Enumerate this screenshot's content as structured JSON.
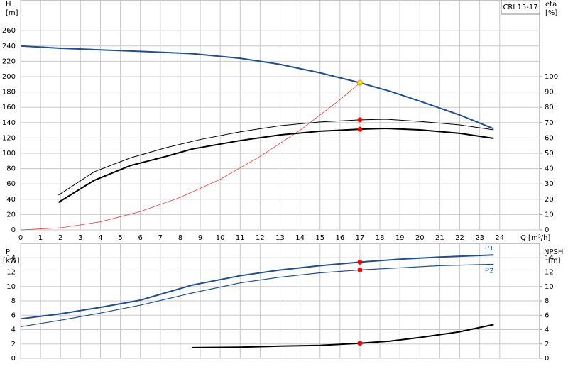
{
  "chart_data": [
    {
      "type": "line",
      "y_label": "H",
      "y_unit": "[m]",
      "y2_label": "eta",
      "y2_unit": "[%]",
      "x_label": "Q [m³/h]",
      "annotation": "CRI 15-17",
      "grid": true,
      "xlim": [
        0,
        26
      ],
      "xticks": [
        0,
        1,
        2,
        3,
        4,
        5,
        6,
        7,
        8,
        9,
        10,
        11,
        12,
        13,
        14,
        15,
        16,
        17,
        18,
        19,
        20,
        21,
        22,
        23,
        24
      ],
      "ylim": [
        0,
        300
      ],
      "yticks": [
        0,
        20,
        40,
        60,
        80,
        100,
        120,
        140,
        160,
        180,
        200,
        220,
        240,
        260
      ],
      "y2lim": [
        0,
        150
      ],
      "y2ticks": [
        0,
        10,
        20,
        30,
        40,
        50,
        60,
        70,
        80,
        90,
        100
      ],
      "series": [
        {
          "color": "#1f4e96",
          "width": 2,
          "axis": "y",
          "x": [
            0,
            2,
            4,
            6,
            8.6,
            11,
            13,
            15,
            17,
            18.5,
            20,
            22,
            23.7
          ],
          "values": [
            240,
            237,
            235,
            233,
            230,
            224,
            216,
            205,
            192,
            181,
            168,
            150,
            132
          ]
        },
        {
          "color": "#ff3333",
          "width": 0.8,
          "axis": "y",
          "x": [
            0,
            2,
            4,
            6,
            8,
            10,
            12,
            14,
            16,
            17
          ],
          "values": [
            0,
            2.7,
            10.6,
            24,
            42.5,
            66,
            96,
            130,
            170,
            192
          ]
        },
        {
          "color": "#000000",
          "width": 1,
          "axis": "y2",
          "x": [
            1.9,
            3.7,
            5.5,
            7.3,
            9,
            11,
            13,
            15,
            17,
            18.3,
            20,
            22,
            23.7
          ],
          "values": [
            22.7,
            38,
            47,
            53.7,
            59,
            64,
            68,
            70.4,
            71.8,
            72.2,
            70.8,
            68.5,
            65.3
          ]
        },
        {
          "color": "#000000",
          "width": 2,
          "axis": "y2",
          "x": [
            1.9,
            3.7,
            5.5,
            7.3,
            8.6,
            11,
            13,
            15,
            17,
            18.3,
            20,
            22,
            23.7
          ],
          "values": [
            18,
            32.4,
            42,
            48,
            52.8,
            58.3,
            62,
            64.4,
            65.7,
            66.2,
            65.3,
            63,
            59.7
          ]
        }
      ],
      "points": [
        {
          "x": 17,
          "value": 192,
          "axis": "y",
          "color": "#ffd700"
        },
        {
          "x": 17,
          "value": 71.8,
          "axis": "y2",
          "color": "#ff0000"
        },
        {
          "x": 17,
          "value": 65.7,
          "axis": "y2",
          "color": "#ff0000"
        }
      ]
    },
    {
      "type": "line",
      "y_label": "P",
      "y_unit": "[kW]",
      "y2_label": "NPSH",
      "y2_unit": "[m]",
      "grid": true,
      "xlim": [
        0,
        26
      ],
      "ylim": [
        0,
        16
      ],
      "yticks": [
        0,
        2,
        4,
        6,
        8,
        10,
        12,
        14
      ],
      "y2lim": [
        0,
        16
      ],
      "y2ticks": [
        0,
        2,
        4,
        6,
        8,
        10,
        12,
        14
      ],
      "series": [
        {
          "name": "P1",
          "color": "#1f4e96",
          "width": 2,
          "axis": "y",
          "x": [
            0,
            2,
            4,
            6,
            8.6,
            11,
            13,
            15,
            17,
            19,
            21,
            23.7
          ],
          "values": [
            5.5,
            6.2,
            7.1,
            8.1,
            10.2,
            11.5,
            12.3,
            12.9,
            13.4,
            13.8,
            14.1,
            14.4
          ]
        },
        {
          "name": "P2",
          "color": "#1f4e96",
          "width": 1.2,
          "axis": "y",
          "x": [
            0,
            2,
            4,
            6,
            8.6,
            11,
            13,
            15,
            17,
            19,
            21,
            23.7
          ],
          "values": [
            4.4,
            5.3,
            6.3,
            7.4,
            9.1,
            10.5,
            11.3,
            11.9,
            12.3,
            12.6,
            12.9,
            13.1
          ]
        },
        {
          "color": "#000000",
          "width": 2,
          "axis": "y2",
          "x": [
            8.6,
            11,
            13,
            15,
            17,
            18.5,
            20,
            22,
            23.7
          ],
          "values": [
            1.5,
            1.55,
            1.7,
            1.8,
            2.1,
            2.4,
            2.9,
            3.7,
            4.7
          ]
        }
      ],
      "points": [
        {
          "x": 17,
          "value": 13.4,
          "axis": "y",
          "color": "#ff0000"
        },
        {
          "x": 17,
          "value": 12.3,
          "axis": "y",
          "color": "#ff0000"
        },
        {
          "x": 17,
          "value": 2.1,
          "axis": "y2",
          "color": "#ff0000"
        }
      ]
    }
  ]
}
